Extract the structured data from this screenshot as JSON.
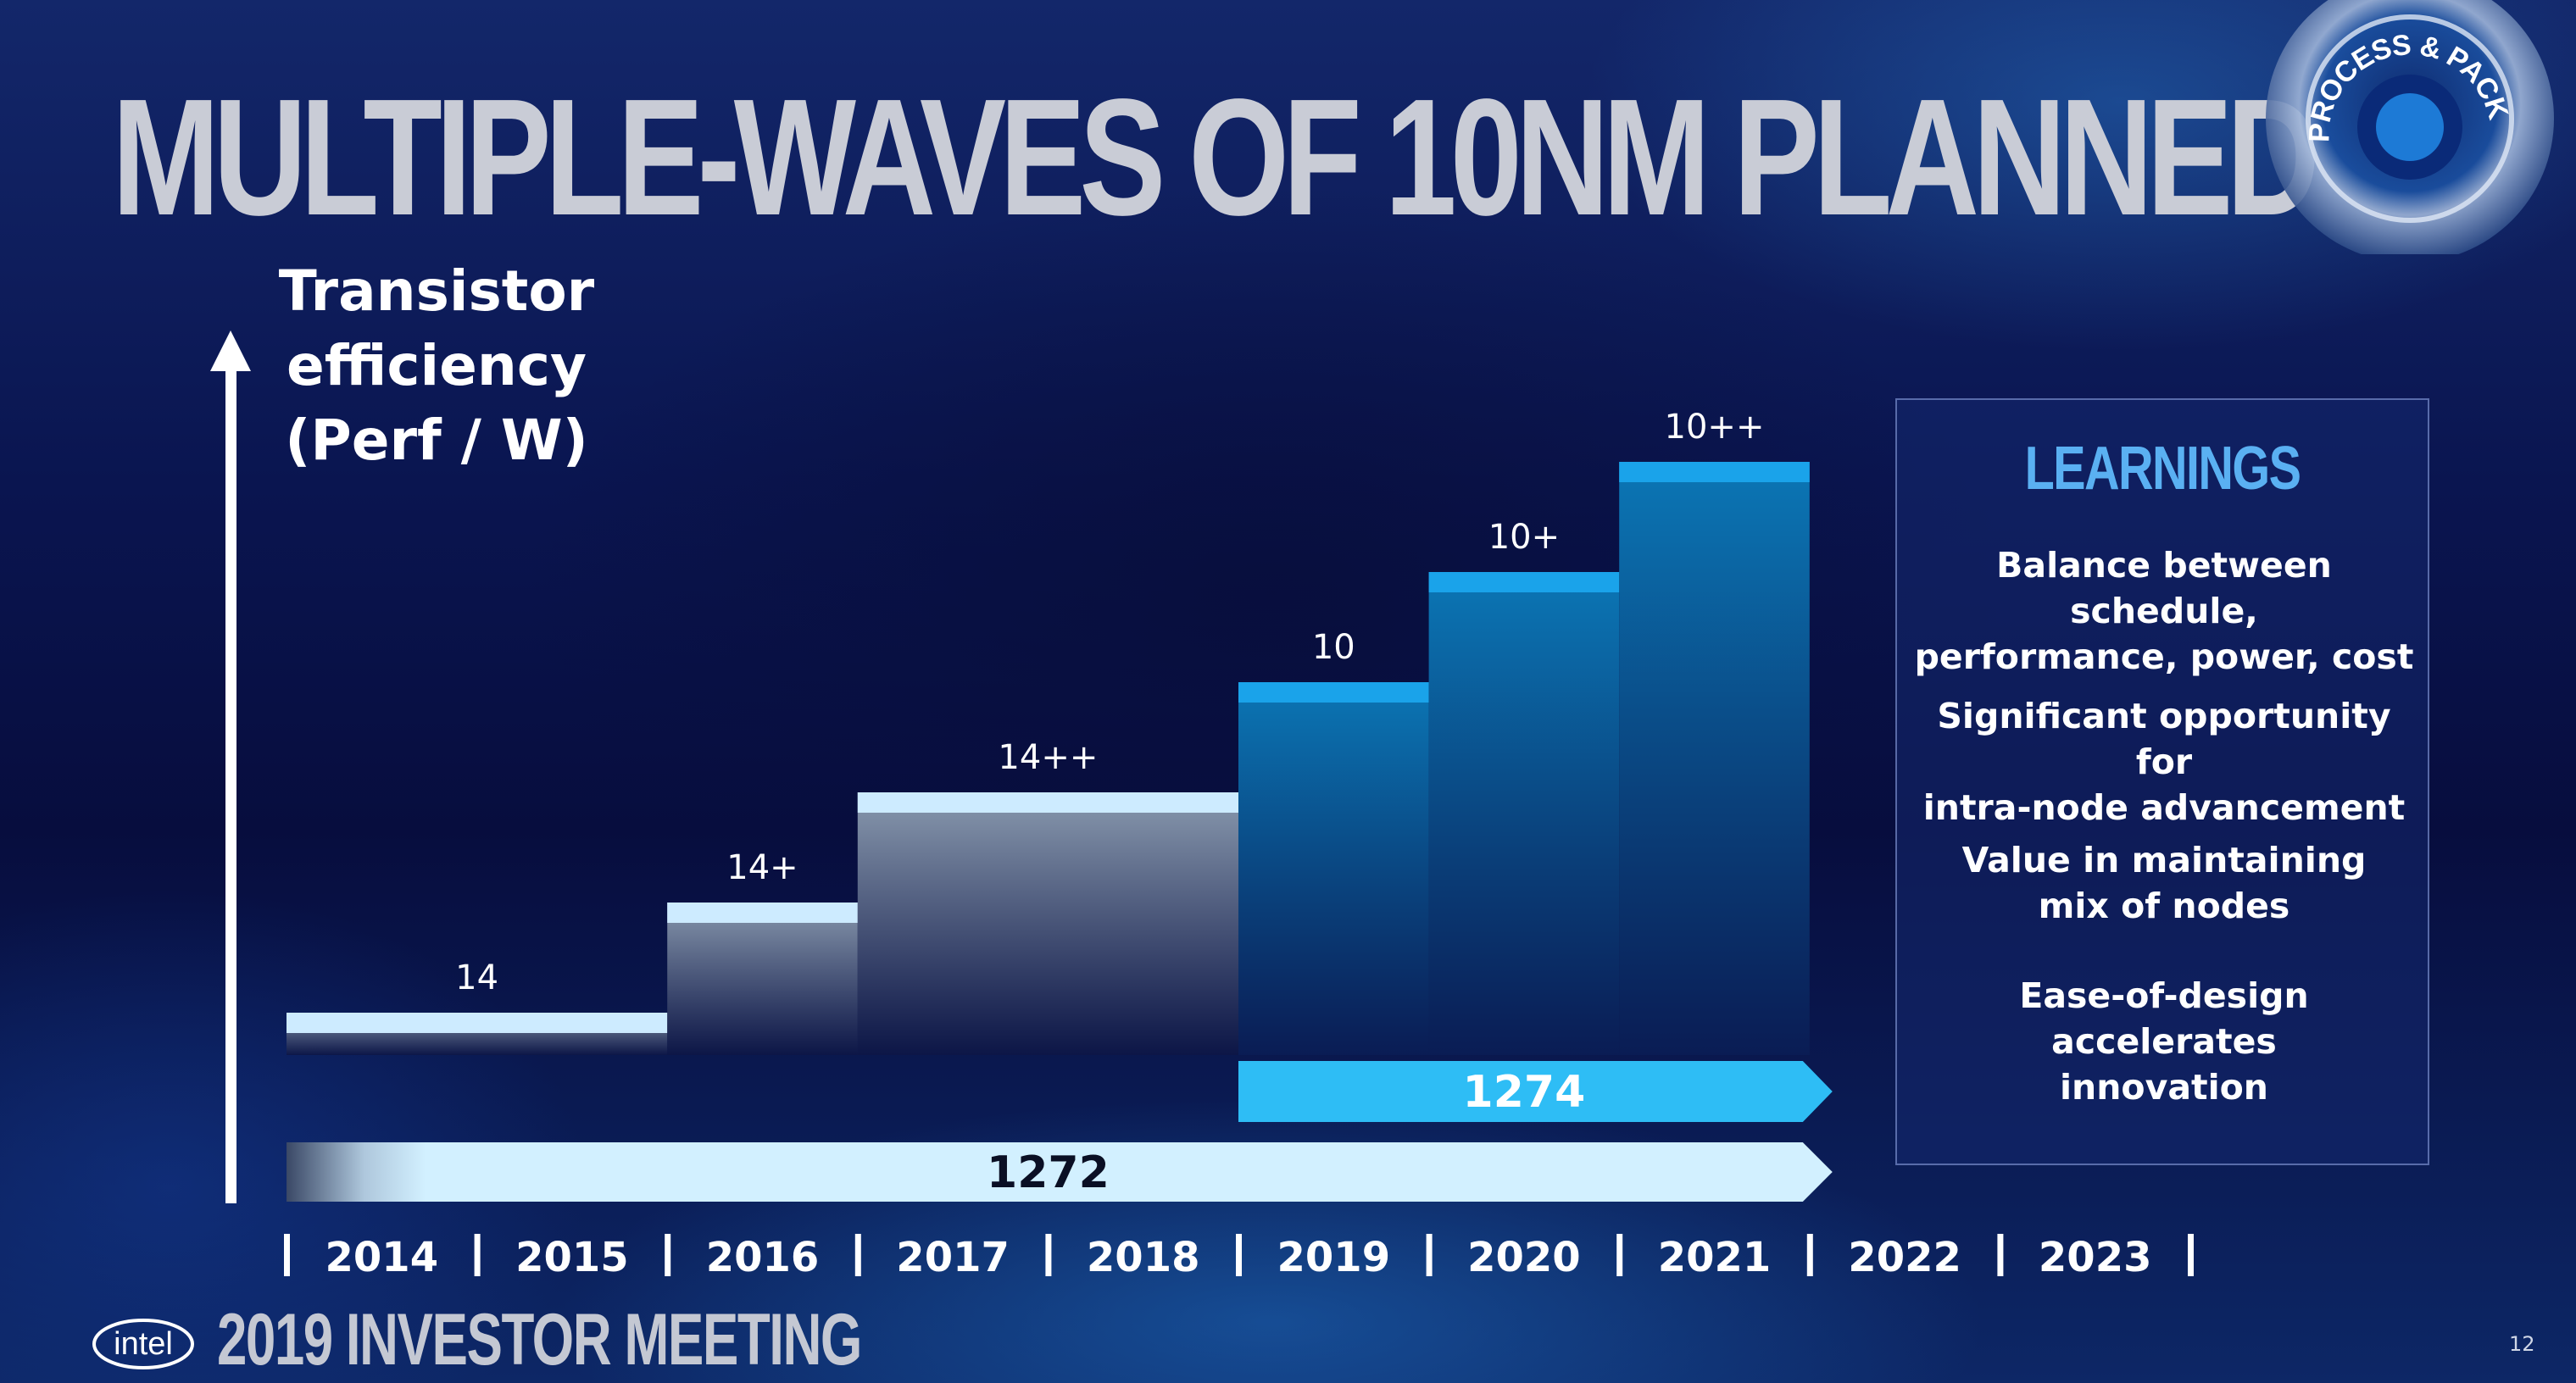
{
  "slide": {
    "title": "MULTIPLE-WAVES OF 10NM PLANNED",
    "badge_text": "PROCESS & PACKAGING",
    "y_axis_label_line1": "Transistor efficiency",
    "y_axis_label_line2": "(Perf / W)"
  },
  "learnings": {
    "title": "LEARNINGS",
    "items": [
      {
        "line1": "Balance between schedule,",
        "line2": "performance, power, cost"
      },
      {
        "line1": "Significant opportunity for",
        "line2": "intra-node advancement"
      },
      {
        "line1": "Value in maintaining",
        "line2": "mix of nodes"
      },
      {
        "line1": "Ease-of-design accelerates",
        "line2": "innovation"
      }
    ]
  },
  "footer": {
    "logo_text": "intel",
    "event": "2019 INVESTOR MEETING",
    "page_number": "12"
  },
  "colors": {
    "node14": "#cdebff",
    "node10": "#1aa3ea",
    "arrow1272": "#d2f0ff",
    "arrow1274": "#2ebdf5",
    "learnings_title": "#5ab0f2"
  },
  "chart_data": {
    "type": "bar",
    "years": [
      "2014",
      "2015",
      "2016",
      "2017",
      "2018",
      "2019",
      "2020",
      "2021",
      "2022",
      "2023"
    ],
    "series": [
      {
        "family": "14nm",
        "nodes": [
          {
            "label": "14",
            "start": "2014",
            "end": "2015",
            "level": 1
          },
          {
            "label": "14+",
            "start": "2016",
            "end": "2016",
            "level": 2
          },
          {
            "label": "14++",
            "start": "2017",
            "end": "2018",
            "level": 3
          }
        ]
      },
      {
        "family": "10nm",
        "nodes": [
          {
            "label": "10",
            "start": "2019",
            "end": "2019",
            "level": 4
          },
          {
            "label": "10+",
            "start": "2020",
            "end": "2020",
            "level": 5
          },
          {
            "label": "10++",
            "start": "2021",
            "end": "2021",
            "level": 6
          }
        ]
      }
    ],
    "process_arrows": [
      {
        "label": "1272",
        "start": "2014",
        "end": "2021"
      },
      {
        "label": "1274",
        "start": "2019",
        "end": "2021"
      }
    ]
  }
}
